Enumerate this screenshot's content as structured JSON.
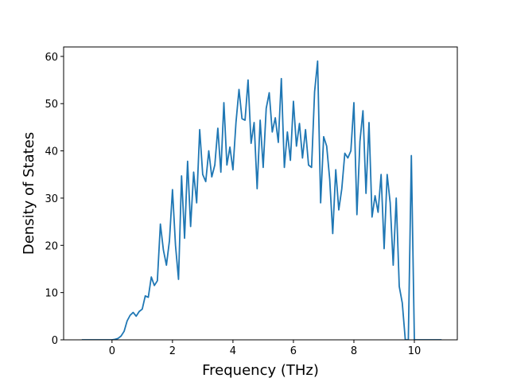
{
  "chart_data": {
    "type": "line",
    "xlabel": "Frequency (THz)",
    "ylabel": "Density of States",
    "x": [
      -1.0,
      -0.9,
      -0.8,
      -0.7,
      -0.6,
      -0.5,
      -0.4,
      -0.3,
      -0.2,
      -0.1,
      0.0,
      0.1,
      0.2,
      0.3,
      0.4,
      0.5,
      0.6,
      0.7,
      0.8,
      0.9,
      1.0,
      1.1,
      1.2,
      1.3,
      1.4,
      1.5,
      1.6,
      1.7,
      1.8,
      1.9,
      2.0,
      2.1,
      2.2,
      2.3,
      2.4,
      2.5,
      2.6,
      2.7,
      2.8,
      2.9,
      3.0,
      3.1,
      3.2,
      3.3,
      3.4,
      3.5,
      3.6,
      3.7,
      3.8,
      3.9,
      4.0,
      4.1,
      4.2,
      4.3,
      4.4,
      4.5,
      4.6,
      4.7,
      4.8,
      4.9,
      5.0,
      5.1,
      5.2,
      5.3,
      5.4,
      5.5,
      5.6,
      5.7,
      5.8,
      5.9,
      6.0,
      6.1,
      6.2,
      6.3,
      6.4,
      6.5,
      6.6,
      6.7,
      6.8,
      6.9,
      7.0,
      7.1,
      7.2,
      7.3,
      7.4,
      7.5,
      7.6,
      7.7,
      7.8,
      7.9,
      8.0,
      8.1,
      8.2,
      8.3,
      8.4,
      8.5,
      8.6,
      8.7,
      8.8,
      8.9,
      9.0,
      9.1,
      9.2,
      9.3,
      9.4,
      9.5,
      9.6,
      9.7,
      9.8,
      9.9,
      10.0,
      10.1,
      10.2,
      10.3,
      10.4,
      10.5,
      10.6,
      10.7,
      10.8,
      10.9
    ],
    "series": [
      {
        "color": "#1f77b4",
        "values": [
          0,
          0,
          0,
          0,
          0,
          0,
          0,
          0,
          0,
          0,
          0,
          0.1,
          0.3,
          0.8,
          1.8,
          4,
          5.2,
          5.8,
          5,
          6,
          6.5,
          9.3,
          9,
          13.3,
          11.5,
          12.5,
          24.5,
          19,
          15.8,
          21,
          31.8,
          20,
          12.8,
          34.7,
          21.5,
          37.8,
          24,
          35.5,
          29,
          44.5,
          35,
          33.5,
          40,
          34.5,
          37,
          44.8,
          35.5,
          50.2,
          37,
          40.8,
          36,
          46,
          53,
          46.8,
          46.5,
          55,
          41.6,
          46,
          32,
          46.5,
          36.5,
          49,
          52.3,
          44,
          47,
          41.8,
          55.3,
          36.5,
          44,
          38,
          50.5,
          41,
          45.8,
          38.5,
          44.5,
          37,
          36.5,
          52.5,
          59,
          29,
          43,
          41,
          34,
          22.5,
          36,
          27.5,
          32,
          39.5,
          38.5,
          40,
          50.2,
          26.5,
          42,
          48.5,
          31,
          46,
          26,
          30.5,
          27,
          35,
          19.3,
          35,
          29,
          15.8,
          30,
          11.3,
          7.8,
          0,
          0,
          39,
          0,
          0,
          0,
          0,
          0,
          0,
          0,
          0,
          0,
          0
        ]
      }
    ],
    "xlim": [
      -1.6,
      11.42
    ],
    "ylim": [
      0,
      62
    ],
    "xticks": [
      0,
      2,
      4,
      6,
      8,
      10
    ],
    "yticks": [
      0,
      10,
      20,
      30,
      40,
      50,
      60
    ]
  }
}
